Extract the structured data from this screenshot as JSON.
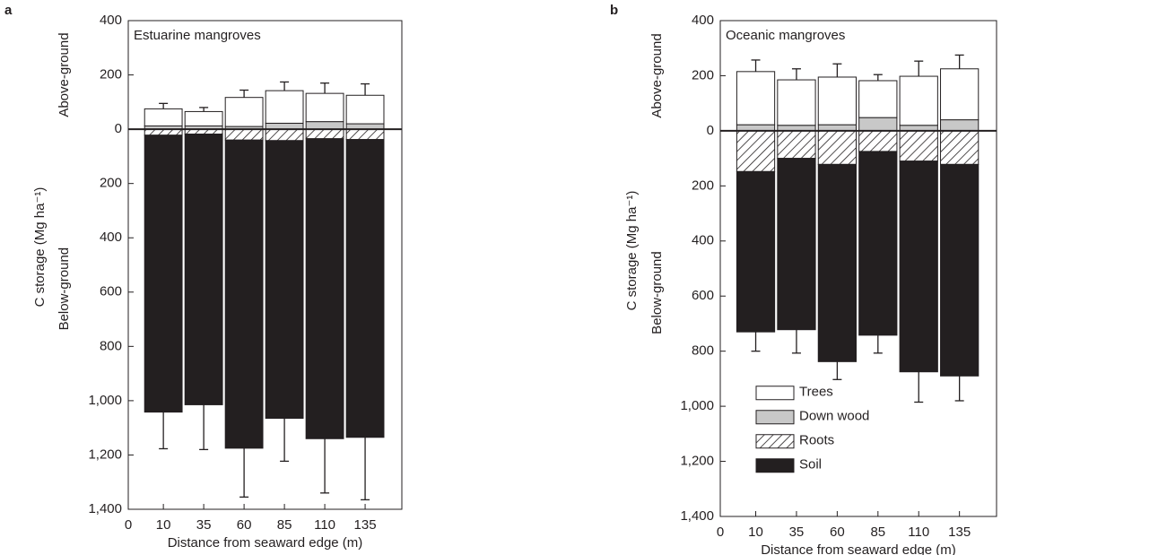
{
  "chart_data": [
    {
      "type": "bar",
      "panel_label": "a",
      "title": "Estuarine mangroves",
      "ylabel": "C storage (Mg ha⁻¹)",
      "ylabel_upper": "Above-ground",
      "ylabel_lower": "Below-ground",
      "xlabel": "Distance from seaward edge (m)",
      "x_start_label": "0",
      "categories": [
        "10",
        "35",
        "60",
        "85",
        "110",
        "135"
      ],
      "series": [
        {
          "color": "#ffffff",
          "values": [
            63,
            53,
            107,
            120,
            104,
            105
          ],
          "errors": [
            20,
            15,
            27,
            32,
            38,
            42
          ]
        },
        {
          "color": "#c8c8c8",
          "values": [
            12,
            12,
            10,
            22,
            28,
            20
          ],
          "errors": [
            5,
            4,
            3,
            5,
            6,
            4
          ]
        },
        {
          "color": "#ffffff",
          "hatch": true,
          "values": [
            -22,
            -18,
            -40,
            -42,
            -35,
            -38
          ],
          "errors": [
            6,
            5,
            8,
            8,
            6,
            8
          ]
        },
        {
          "color": "#231f20",
          "values": [
            -1020,
            -997,
            -1135,
            -1023,
            -1105,
            -1097
          ],
          "errors": [
            135,
            165,
            180,
            158,
            200,
            230
          ]
        }
      ],
      "ylim": [
        -1400,
        400
      ],
      "yticks": [
        400,
        200,
        0,
        {
          "value": -200,
          "label": "200"
        },
        {
          "value": -400,
          "label": "400"
        },
        {
          "value": -600,
          "label": "600"
        },
        {
          "value": -800,
          "label": "800"
        },
        {
          "value": -1000,
          "label": "1,000"
        },
        {
          "value": -1200,
          "label": "1,200"
        },
        {
          "value": -1400,
          "label": "1,400"
        }
      ],
      "zero_line": true,
      "legend": false
    },
    {
      "type": "bar",
      "panel_label": "b",
      "title": "Oceanic mangroves",
      "ylabel": "C storage (Mg ha⁻¹)",
      "ylabel_upper": "Above-ground",
      "ylabel_lower": "Below-ground",
      "xlabel": "Distance from seaward edge (m)",
      "x_start_label": "0",
      "categories": [
        "10",
        "35",
        "60",
        "85",
        "110",
        "135"
      ],
      "series": [
        {
          "name": "Trees",
          "color": "#ffffff",
          "values": [
            193,
            165,
            173,
            134,
            178,
            185
          ],
          "errors": [
            42,
            40,
            48,
            22,
            55,
            50
          ]
        },
        {
          "name": "Down wood",
          "color": "#c8c8c8",
          "values": [
            22,
            20,
            22,
            48,
            20,
            40
          ],
          "errors": [
            6,
            4,
            6,
            25,
            5,
            18
          ]
        },
        {
          "name": "Roots",
          "color": "#ffffff",
          "hatch": true,
          "values": [
            -148,
            -100,
            -122,
            -75,
            -110,
            -122
          ],
          "errors": [
            40,
            22,
            48,
            12,
            40,
            48
          ]
        },
        {
          "name": "Soil",
          "color": "#231f20",
          "values": [
            -582,
            -622,
            -716,
            -667,
            -765,
            -768
          ],
          "errors": [
            70,
            85,
            65,
            65,
            110,
            90
          ]
        }
      ],
      "ylim": [
        -1400,
        400
      ],
      "yticks": [
        400,
        200,
        0,
        {
          "value": -200,
          "label": "200"
        },
        {
          "value": -400,
          "label": "400"
        },
        {
          "value": -600,
          "label": "600"
        },
        {
          "value": -800,
          "label": "800"
        },
        {
          "value": -1000,
          "label": "1,000"
        },
        {
          "value": -1200,
          "label": "1,200"
        },
        {
          "value": -1400,
          "label": "1,400"
        }
      ],
      "zero_line": true,
      "legend": "lower left"
    }
  ]
}
